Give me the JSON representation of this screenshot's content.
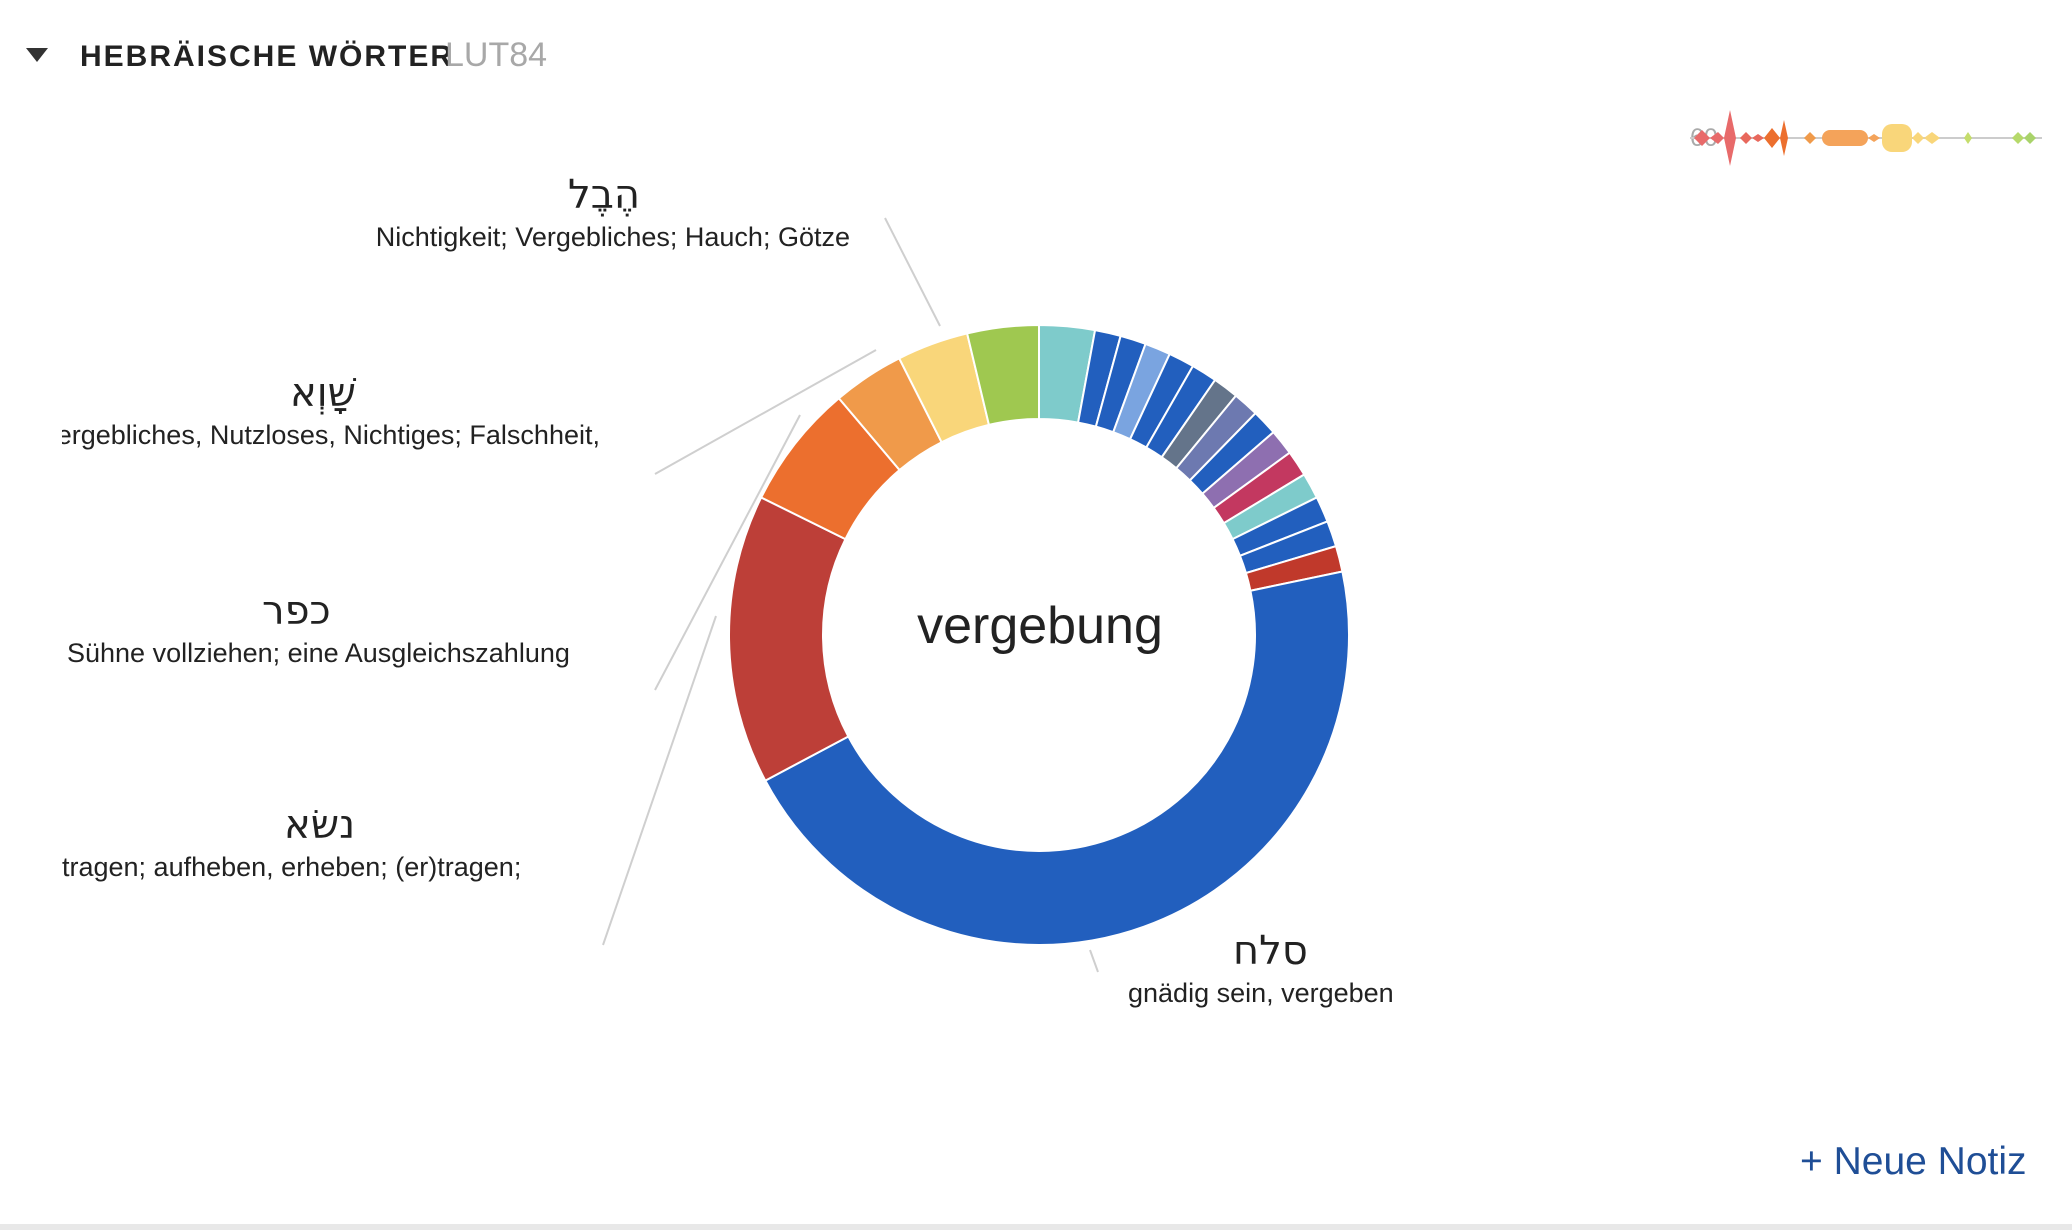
{
  "panel": {
    "title": "HEBRÄISCHE WÖRTER",
    "version": "LUT84",
    "new_note_label": "+ Neue Notiz",
    "sparkline_label": "60",
    "toggle_icon": "triangle-down-icon"
  },
  "chart_data": {
    "type": "pie",
    "variant": "donut",
    "center_label": "vergebung",
    "labels": [
      {
        "hebrew": "הֶבֶל",
        "gloss": "Nichtigkeit; Vergebliches; Hauch; Götze"
      },
      {
        "hebrew": "שָׁוְא",
        "gloss": ",Vergebliches, Nutzloses, Nichtiges; Falschheit"
      },
      {
        "hebrew": "כפר",
        "gloss": "Sühne vollziehen; eine Ausgleichszahlung"
      },
      {
        "hebrew": "נשׂא",
        "gloss": "tragen; aufheben, erheben; (er)tragen;"
      },
      {
        "hebrew": "סלח",
        "gloss": "gnädig sein, vergeben"
      }
    ],
    "slices": [
      {
        "value": 2.8,
        "color": "#7ecbcb"
      },
      {
        "value": 1.3,
        "color": "#225fbe"
      },
      {
        "value": 1.3,
        "color": "#225fbe"
      },
      {
        "value": 1.3,
        "color": "#7aa4e0"
      },
      {
        "value": 1.3,
        "color": "#225fbe"
      },
      {
        "value": 1.3,
        "color": "#225fbe"
      },
      {
        "value": 1.3,
        "color": "#64748a"
      },
      {
        "value": 1.3,
        "color": "#6d79b0"
      },
      {
        "value": 1.3,
        "color": "#225fbe"
      },
      {
        "value": 1.3,
        "color": "#8e6fb0"
      },
      {
        "value": 1.3,
        "color": "#c33860"
      },
      {
        "value": 1.3,
        "color": "#7ecbcb"
      },
      {
        "value": 1.3,
        "color": "#225fbe"
      },
      {
        "value": 1.3,
        "color": "#225fbe"
      },
      {
        "value": 1.3,
        "color": "#c0392b"
      },
      {
        "value": 44,
        "color": "#225fbe"
      },
      {
        "value": 14.6,
        "color": "#bd3f38"
      },
      {
        "value": 6.3,
        "color": "#ec6f2e"
      },
      {
        "value": 3.6,
        "color": "#f09a4a"
      },
      {
        "value": 3.6,
        "color": "#f9d67a"
      },
      {
        "value": 3.6,
        "color": "#9fc850"
      }
    ]
  }
}
